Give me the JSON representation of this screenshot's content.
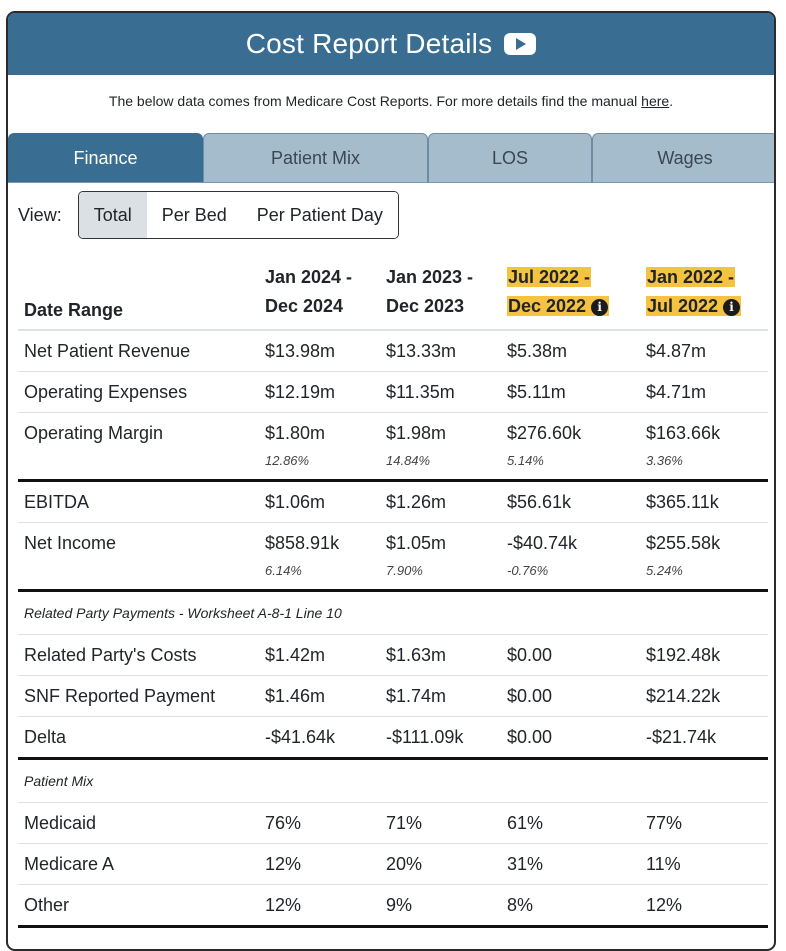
{
  "header": {
    "title": "Cost Report Details",
    "video_icon": "youtube-play-icon"
  },
  "intro": {
    "text": "The below data comes from Medicare Cost Reports. For more details find the manual ",
    "link": "here",
    "suffix": "."
  },
  "tabs": [
    {
      "label": "Finance",
      "active": true
    },
    {
      "label": "Patient Mix",
      "active": false
    },
    {
      "label": "LOS",
      "active": false
    },
    {
      "label": "Wages",
      "active": false
    }
  ],
  "view": {
    "label": "View:",
    "options": [
      {
        "label": "Total",
        "active": true
      },
      {
        "label": "Per Bed",
        "active": false
      },
      {
        "label": "Per Patient Day",
        "active": false
      }
    ]
  },
  "table": {
    "row_header": "Date Range",
    "columns": [
      {
        "line1": "Jan 2024 -",
        "line2": "Dec 2024",
        "highlight": false
      },
      {
        "line1": "Jan 2023 -",
        "line2": "Dec 2023",
        "highlight": false
      },
      {
        "line1": "Jul 2022 -",
        "line2": "Dec 2022",
        "highlight": true
      },
      {
        "line1": "Jan 2022 -",
        "line2": "Jul 2022",
        "highlight": true
      }
    ],
    "rows": {
      "net_patient_revenue": {
        "label": "Net Patient Revenue",
        "values": [
          "$13.98m",
          "$13.33m",
          "$5.38m",
          "$4.87m"
        ]
      },
      "operating_expenses": {
        "label": "Operating Expenses",
        "values": [
          "$12.19m",
          "$11.35m",
          "$5.11m",
          "$4.71m"
        ]
      },
      "operating_margin": {
        "label": "Operating Margin",
        "values": [
          "$1.80m",
          "$1.98m",
          "$276.60k",
          "$163.66k"
        ],
        "pcts": [
          "12.86%",
          "14.84%",
          "5.14%",
          "3.36%"
        ]
      },
      "ebitda": {
        "label": "EBITDA",
        "values": [
          "$1.06m",
          "$1.26m",
          "$56.61k",
          "$365.11k"
        ]
      },
      "net_income": {
        "label": "Net Income",
        "values": [
          "$858.91k",
          "$1.05m",
          "-$40.74k",
          "$255.58k"
        ],
        "pcts": [
          "6.14%",
          "7.90%",
          "-0.76%",
          "5.24%"
        ]
      },
      "related_section": "Related Party Payments - Worksheet A-8-1 Line 10",
      "related_costs": {
        "label": "Related Party's Costs",
        "values": [
          "$1.42m",
          "$1.63m",
          "$0.00",
          "$192.48k"
        ]
      },
      "snf_payment": {
        "label": "SNF Reported Payment",
        "values": [
          "$1.46m",
          "$1.74m",
          "$0.00",
          "$214.22k"
        ]
      },
      "delta": {
        "label": "Delta",
        "values": [
          "-$41.64k",
          "-$111.09k",
          "$0.00",
          "-$21.74k"
        ]
      },
      "patient_mix_section": "Patient Mix",
      "medicaid": {
        "label": "Medicaid",
        "values": [
          "76%",
          "71%",
          "61%",
          "77%"
        ]
      },
      "medicare_a": {
        "label": "Medicare A",
        "values": [
          "12%",
          "20%",
          "31%",
          "11%"
        ]
      },
      "other": {
        "label": "Other",
        "values": [
          "12%",
          "9%",
          "8%",
          "12%"
        ]
      }
    }
  },
  "colors": {
    "header_bg": "#3a6d92",
    "tab_inactive_bg": "#a5bccd",
    "highlight": "#f5c242"
  }
}
